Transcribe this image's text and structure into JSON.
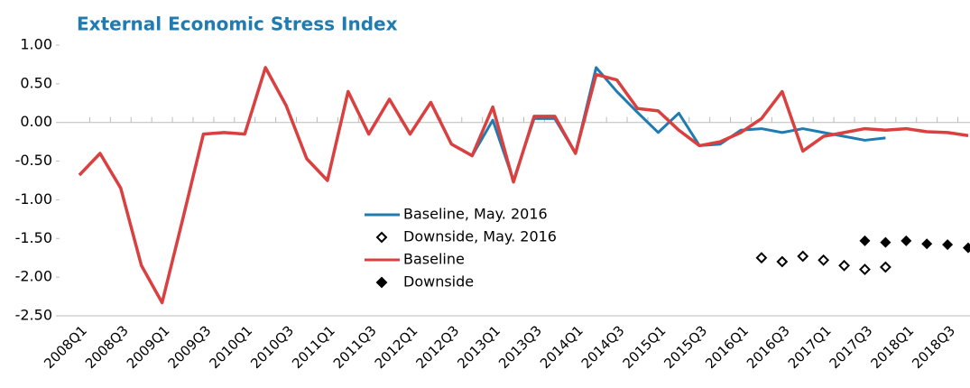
{
  "chart_data": {
    "type": "line",
    "title": "External Economic Stress Index",
    "categories": [
      "2008Q1",
      null,
      "2008Q3",
      null,
      "2009Q1",
      null,
      "2009Q3",
      null,
      "2010Q1",
      null,
      "2010Q3",
      null,
      "2011Q1",
      null,
      "2011Q3",
      null,
      "2012Q1",
      null,
      "2012Q3",
      null,
      "2013Q1",
      null,
      "2013Q3",
      null,
      "2014Q1",
      null,
      "2014Q3",
      null,
      "2015Q1",
      null,
      "2015Q3",
      null,
      "2016Q1",
      null,
      "2016Q3",
      null,
      "2017Q1",
      null,
      "2017Q3",
      null,
      "2018Q1",
      null,
      "2018Q3",
      null
    ],
    "series": [
      {
        "name": "Baseline, May. 2016",
        "color": "#1f7bb0",
        "marker": "line",
        "values": [
          -0.68,
          -0.4,
          -0.85,
          -1.85,
          -2.33,
          -1.25,
          -0.15,
          -0.13,
          -0.15,
          0.71,
          0.22,
          -0.47,
          -0.75,
          0.4,
          -0.15,
          0.3,
          -0.15,
          0.26,
          -0.28,
          -0.43,
          0.03,
          -0.75,
          0.05,
          0.05,
          -0.4,
          0.71,
          0.4,
          0.13,
          -0.13,
          0.12,
          -0.3,
          -0.28,
          -0.1,
          -0.08,
          -0.13,
          -0.08,
          -0.13,
          -0.18,
          -0.23,
          -0.2,
          null,
          null,
          null,
          null
        ]
      },
      {
        "name": "Downside, May. 2016",
        "color": "#000000",
        "marker": "hollow-diamond",
        "values": [
          null,
          null,
          null,
          null,
          null,
          null,
          null,
          null,
          null,
          null,
          null,
          null,
          null,
          null,
          null,
          null,
          null,
          null,
          null,
          null,
          null,
          null,
          null,
          null,
          null,
          null,
          null,
          null,
          null,
          null,
          null,
          null,
          null,
          -1.75,
          -1.8,
          -1.73,
          -1.78,
          -1.85,
          -1.9,
          -1.87,
          null,
          null,
          null,
          null
        ]
      },
      {
        "name": "Baseline",
        "color": "#d9403f",
        "marker": "line",
        "values": [
          -0.68,
          -0.4,
          -0.85,
          -1.85,
          -2.33,
          -1.25,
          -0.15,
          -0.13,
          -0.15,
          0.71,
          0.22,
          -0.47,
          -0.75,
          0.4,
          -0.15,
          0.3,
          -0.15,
          0.26,
          -0.28,
          -0.43,
          0.2,
          -0.77,
          0.08,
          0.08,
          -0.4,
          0.62,
          0.55,
          0.18,
          0.15,
          -0.1,
          -0.3,
          -0.25,
          -0.13,
          0.05,
          0.4,
          -0.37,
          -0.18,
          -0.13,
          -0.08,
          -0.1,
          -0.08,
          -0.12,
          -0.13,
          -0.17
        ]
      },
      {
        "name": "Downside",
        "color": "#000000",
        "marker": "diamond",
        "values": [
          null,
          null,
          null,
          null,
          null,
          null,
          null,
          null,
          null,
          null,
          null,
          null,
          null,
          null,
          null,
          null,
          null,
          null,
          null,
          null,
          null,
          null,
          null,
          null,
          null,
          null,
          null,
          null,
          null,
          null,
          null,
          null,
          null,
          null,
          null,
          null,
          null,
          null,
          -1.53,
          -1.55,
          -1.53,
          -1.57,
          -1.58,
          -1.62
        ]
      }
    ],
    "ylim": [
      -2.5,
      1.0
    ],
    "yticks": [
      {
        "value": 1.0,
        "label": "1.00"
      },
      {
        "value": 0.5,
        "label": "0.50"
      },
      {
        "value": 0,
        "label": "0.00"
      },
      {
        "value": -0.5,
        "label": "-0.50"
      },
      {
        "value": -1.0,
        "label": "-1.00"
      },
      {
        "value": -1.5,
        "label": "-1.50"
      },
      {
        "value": -2.0,
        "label": "-2.00"
      },
      {
        "value": -2.5,
        "label": "-2.50"
      }
    ]
  }
}
